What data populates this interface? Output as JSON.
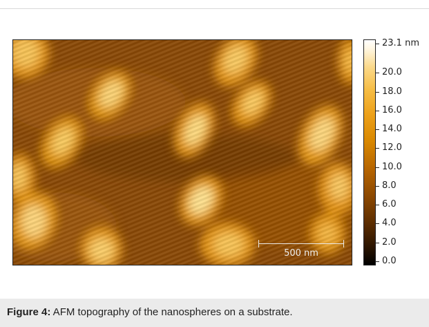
{
  "figure": {
    "colorbar": {
      "max_label": "23.1 nm",
      "tick_labels": [
        "0.0",
        "2.0",
        "4.0",
        "6.0",
        "8.0",
        "10.0",
        "12.0",
        "14.0",
        "16.0",
        "18.0",
        "20.0"
      ],
      "max_value_nm": 23.1,
      "colormap": [
        "#000000",
        "#5a2c00",
        "#b46300",
        "#eda11a",
        "#fbd98a",
        "#ffffff"
      ]
    },
    "scale_bar": {
      "label": "500 nm"
    }
  },
  "caption": {
    "label": "Figure 4:",
    "text": " AFM topography of the nanospheres on a substrate."
  }
}
